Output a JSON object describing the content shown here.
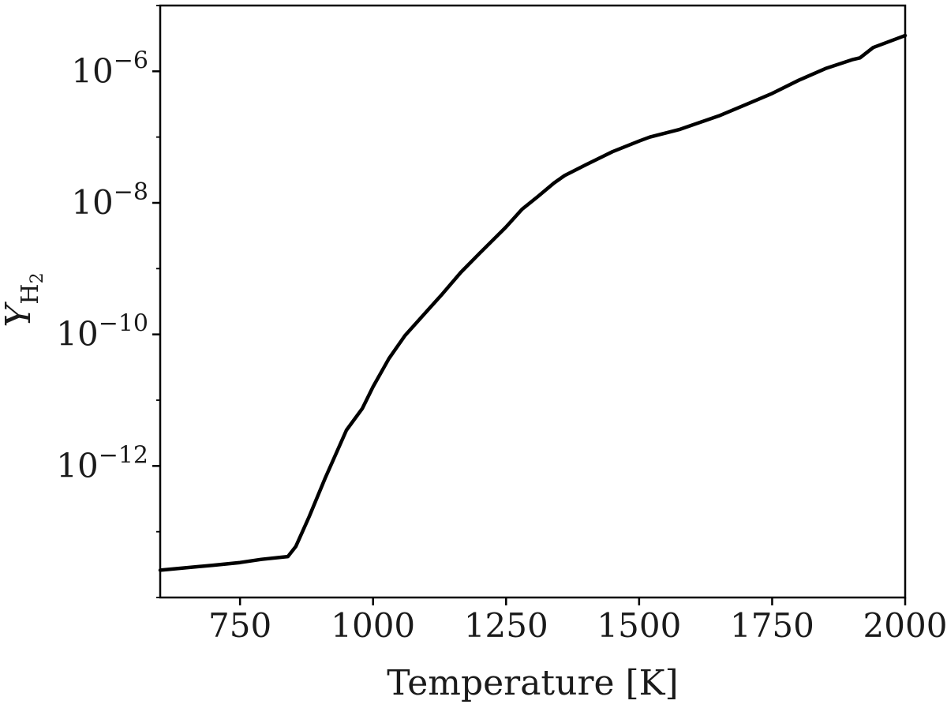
{
  "chart_data": {
    "type": "line",
    "xlabel": "Temperature [K]",
    "ylabel": "Y",
    "ylabel_subscript": "H",
    "ylabel_subsubscript": "2",
    "xlim": [
      600,
      2000
    ],
    "ylim_log10": [
      -14.0,
      -5.0
    ],
    "y_scale": "log",
    "grid": false,
    "x_ticks": [
      {
        "value": 750,
        "label": "750"
      },
      {
        "value": 1000,
        "label": "1000"
      },
      {
        "value": 1250,
        "label": "1250"
      },
      {
        "value": 1500,
        "label": "1500"
      },
      {
        "value": 1750,
        "label": "1750"
      },
      {
        "value": 2000,
        "label": "2000"
      }
    ],
    "y_ticks": [
      {
        "log10": -6,
        "base": "10",
        "exp": "−6"
      },
      {
        "log10": -8,
        "base": "10",
        "exp": "−8"
      },
      {
        "log10": -10,
        "base": "10",
        "exp": "−10"
      },
      {
        "log10": -12,
        "base": "10",
        "exp": "−12"
      }
    ],
    "series": [
      {
        "color": "#000000",
        "x": [
          600,
          700,
          750,
          790,
          840,
          855,
          880,
          910,
          950,
          980,
          1000,
          1030,
          1060,
          1100,
          1130,
          1165,
          1200,
          1250,
          1280,
          1310,
          1340,
          1360,
          1400,
          1450,
          1500,
          1520,
          1575,
          1650,
          1700,
          1750,
          1800,
          1850,
          1900,
          1915,
          1940,
          2000
        ],
        "y": [
          2.6e-14,
          3.1e-14,
          3.4e-14,
          3.8e-14,
          4.2e-14,
          6e-14,
          1.7e-13,
          6.5e-13,
          3.5e-12,
          7.5e-12,
          1.6e-11,
          4.3e-11,
          9.6e-11,
          2.2e-10,
          4.1e-10,
          8.8e-10,
          1.7e-09,
          4.3e-09,
          8e-09,
          1.25e-08,
          2e-08,
          2.6e-08,
          3.8e-08,
          6e-08,
          8.7e-08,
          1e-07,
          1.3e-07,
          2.1e-07,
          3.1e-07,
          4.6e-07,
          7.3e-07,
          1.1e-06,
          1.5e-06,
          1.6e-06,
          2.3e-06,
          3.5e-06
        ]
      }
    ]
  }
}
